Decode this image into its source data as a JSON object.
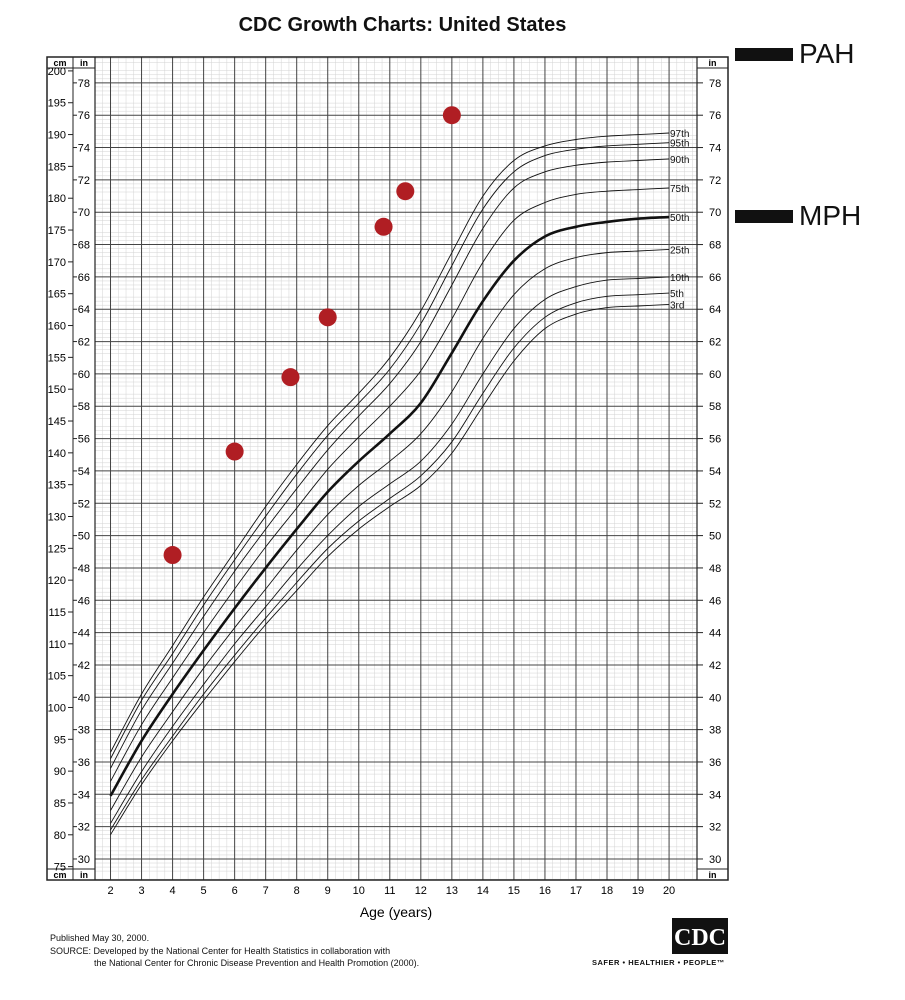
{
  "header": {
    "title": "CDC Growth Charts: United States"
  },
  "legend": {
    "pah_label": "PAH",
    "mph_label": "MPH"
  },
  "footer": {
    "published": "Published May 30, 2000.",
    "source_line1": "SOURCE: Developed by the National Center for Health Statistics in collaboration with",
    "source_line2": "the National Center for Chronic Disease Prevention and Health Promotion (2000).",
    "logo_text": "CDC",
    "tagline": "SAFER • HEALTHIER • PEOPLE™"
  },
  "chart_data": {
    "type": "line",
    "xlabel": "Age (years)",
    "x_ticks": [
      2,
      3,
      4,
      5,
      6,
      7,
      8,
      9,
      10,
      11,
      12,
      13,
      14,
      15,
      16,
      17,
      18,
      19,
      20
    ],
    "xlim": [
      1.5,
      20.9
    ],
    "ylim_in": [
      28.7,
      79.6
    ],
    "in_ticks": [
      30,
      32,
      34,
      36,
      38,
      40,
      42,
      44,
      46,
      48,
      50,
      52,
      54,
      56,
      58,
      60,
      62,
      64,
      66,
      68,
      70,
      72,
      74,
      76,
      78
    ],
    "cm_ticks": [
      75,
      80,
      85,
      90,
      95,
      100,
      105,
      110,
      115,
      120,
      125,
      130,
      135,
      140,
      145,
      150,
      155,
      160,
      165,
      170,
      175,
      180,
      185,
      190,
      195,
      200
    ],
    "unit_left_top": "cm",
    "unit_in_top": "in",
    "unit_right_top": "in",
    "unit_left_bottom": "cm",
    "unit_in_bottom": "in",
    "unit_right_bottom": "in",
    "grid": true,
    "ages": [
      2,
      3,
      4,
      5,
      6,
      7,
      8,
      9,
      10,
      11,
      12,
      13,
      14,
      15,
      16,
      17,
      18,
      19,
      20
    ],
    "series": [
      {
        "name": "97th",
        "bold": false,
        "values": [
          36.6,
          40.2,
          43.2,
          46.2,
          49.0,
          51.8,
          54.4,
          56.8,
          58.8,
          61.0,
          63.9,
          67.5,
          71.0,
          73.2,
          74.1,
          74.5,
          74.7,
          74.8,
          74.9
        ]
      },
      {
        "name": "95th",
        "bold": false,
        "values": [
          36.2,
          39.8,
          42.7,
          45.7,
          48.5,
          51.2,
          53.8,
          56.2,
          58.2,
          60.3,
          63.1,
          66.7,
          70.2,
          72.5,
          73.5,
          73.9,
          74.1,
          74.2,
          74.3
        ]
      },
      {
        "name": "90th",
        "bold": false,
        "values": [
          35.6,
          39.2,
          42.1,
          45.0,
          47.8,
          50.4,
          52.9,
          55.3,
          57.4,
          59.4,
          62.0,
          65.5,
          69.0,
          71.5,
          72.5,
          72.9,
          73.1,
          73.2,
          73.3
        ]
      },
      {
        "name": "75th",
        "bold": false,
        "values": [
          34.8,
          38.3,
          41.2,
          44.0,
          46.7,
          49.3,
          51.7,
          54.1,
          56.1,
          58.0,
          60.2,
          63.4,
          66.9,
          69.5,
          70.6,
          71.1,
          71.3,
          71.4,
          71.5
        ]
      },
      {
        "name": "50th",
        "bold": true,
        "values": [
          33.9,
          37.3,
          40.2,
          42.9,
          45.5,
          48.0,
          50.4,
          52.7,
          54.6,
          56.3,
          58.2,
          61.3,
          64.5,
          67.0,
          68.5,
          69.1,
          69.4,
          69.6,
          69.7
        ]
      },
      {
        "name": "25th",
        "bold": false,
        "values": [
          33.0,
          36.3,
          39.1,
          41.8,
          44.3,
          46.7,
          49.1,
          51.3,
          53.1,
          54.6,
          56.3,
          58.9,
          62.2,
          64.9,
          66.5,
          67.2,
          67.5,
          67.6,
          67.7
        ]
      },
      {
        "name": "10th",
        "bold": false,
        "values": [
          32.2,
          35.4,
          38.2,
          40.8,
          43.3,
          45.6,
          47.9,
          50.0,
          51.8,
          53.2,
          54.6,
          56.9,
          60.0,
          62.8,
          64.6,
          65.4,
          65.8,
          65.9,
          66.0
        ]
      },
      {
        "name": "5th",
        "bold": false,
        "values": [
          31.8,
          34.9,
          37.6,
          40.2,
          42.6,
          44.9,
          47.1,
          49.2,
          50.9,
          52.3,
          53.7,
          55.8,
          58.8,
          61.6,
          63.5,
          64.4,
          64.8,
          64.9,
          65.0
        ]
      },
      {
        "name": "3rd",
        "bold": false,
        "values": [
          31.5,
          34.6,
          37.3,
          39.8,
          42.2,
          44.5,
          46.6,
          48.7,
          50.4,
          51.8,
          53.1,
          55.1,
          58.0,
          60.8,
          62.8,
          63.7,
          64.1,
          64.2,
          64.3
        ]
      }
    ],
    "points": {
      "color": "#b01e23",
      "values": [
        {
          "x": 4.0,
          "y": 48.8
        },
        {
          "x": 6.0,
          "y": 55.2
        },
        {
          "x": 7.8,
          "y": 59.8
        },
        {
          "x": 9.0,
          "y": 63.5
        },
        {
          "x": 10.8,
          "y": 69.1
        },
        {
          "x": 11.5,
          "y": 71.3
        },
        {
          "x": 13.0,
          "y": 76.0
        }
      ]
    },
    "markers": [
      {
        "label": "PAH",
        "y": 79.3
      },
      {
        "label": "MPH",
        "y": 70.0
      }
    ]
  }
}
